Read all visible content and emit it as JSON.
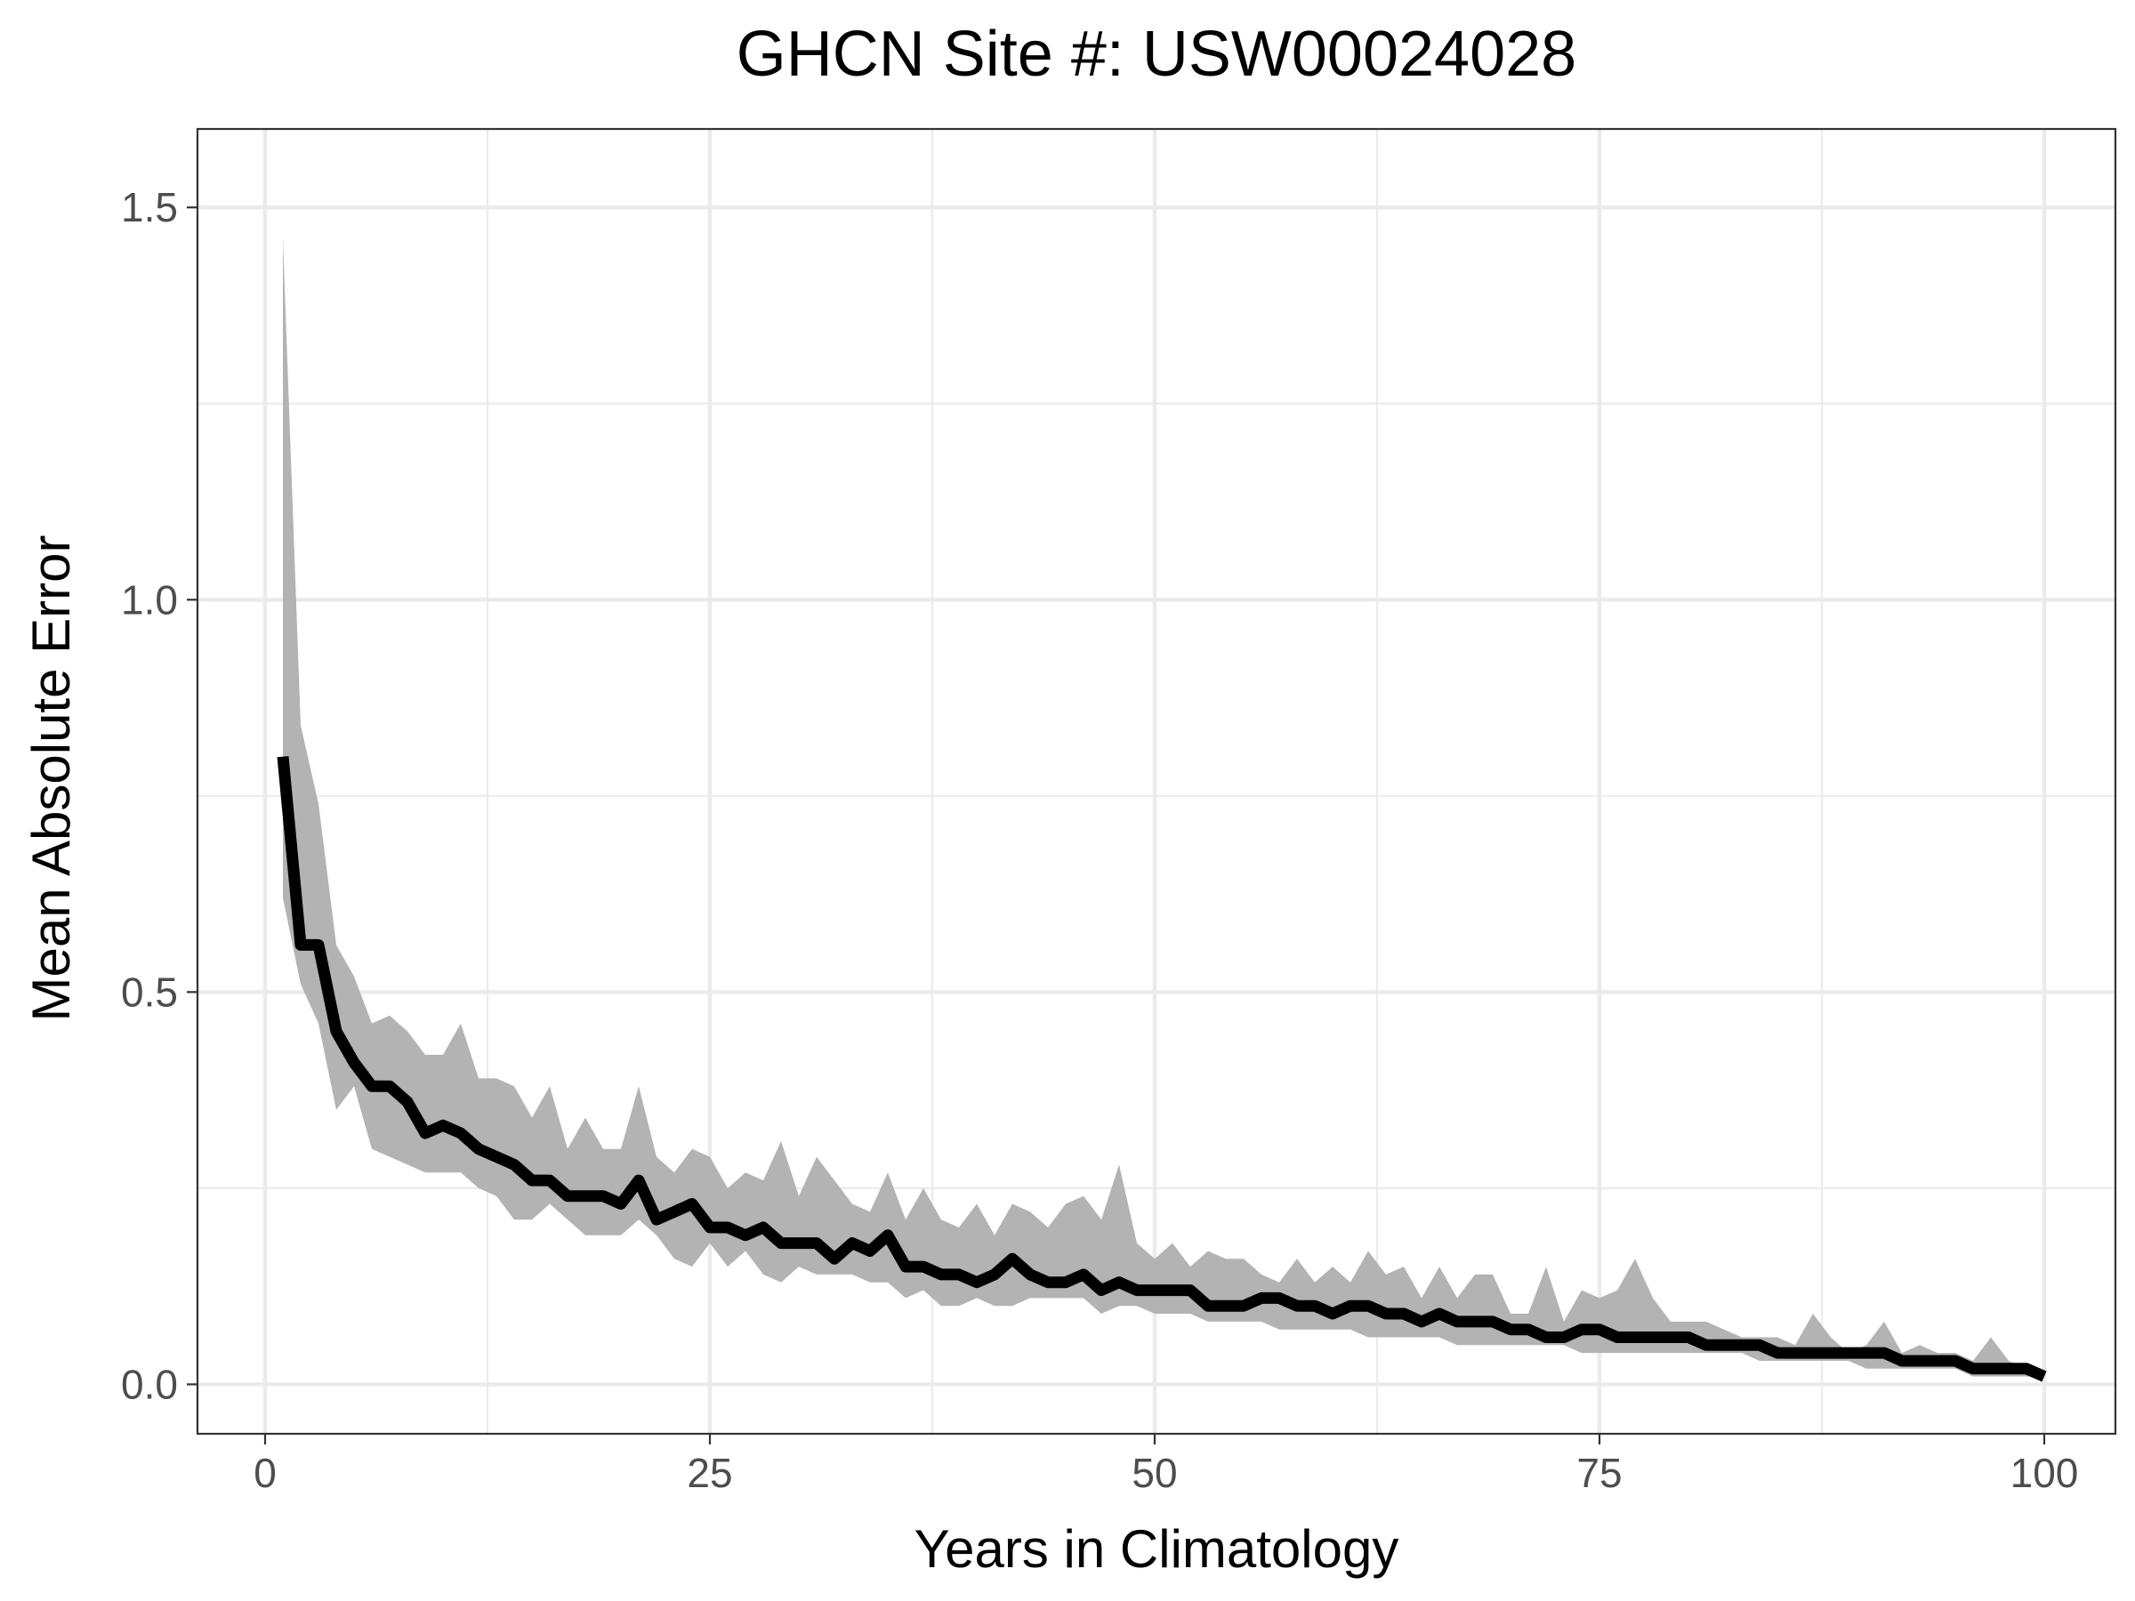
{
  "chart_data": {
    "type": "line",
    "title": "GHCN Site #: USW00024028",
    "xlabel": "Years in Climatology",
    "ylabel": "Mean Absolute Error",
    "xlim": [
      -3.8,
      104
    ],
    "ylim": [
      -0.063,
      1.6
    ],
    "x_ticks": [
      0,
      25,
      50,
      75,
      100
    ],
    "x_tick_labels": [
      "0",
      "25",
      "50",
      "75",
      "100"
    ],
    "y_ticks": [
      0.0,
      0.5,
      1.0,
      1.5
    ],
    "y_tick_labels": [
      "0.0",
      "0.5",
      "1.0",
      "1.5"
    ],
    "x_minor_ticks": [
      12.5,
      37.5,
      62.5,
      87.5
    ],
    "y_minor_ticks": [
      0.25,
      0.75,
      1.25
    ],
    "grid": true,
    "series": [
      {
        "kind": "ribbon",
        "color": "#b3b3b3",
        "x": [
          1,
          2,
          3,
          4,
          5,
          6,
          7,
          8,
          9,
          10,
          11,
          12,
          13,
          14,
          15,
          16,
          17,
          18,
          19,
          20,
          21,
          22,
          23,
          24,
          25,
          26,
          27,
          28,
          29,
          30,
          31,
          32,
          33,
          34,
          35,
          36,
          37,
          38,
          39,
          40,
          41,
          42,
          43,
          44,
          45,
          46,
          47,
          48,
          49,
          50,
          51,
          52,
          53,
          54,
          55,
          56,
          57,
          58,
          59,
          60,
          61,
          62,
          63,
          64,
          65,
          66,
          67,
          68,
          69,
          70,
          71,
          72,
          73,
          74,
          75,
          76,
          77,
          78,
          79,
          80,
          81,
          82,
          83,
          84,
          85,
          86,
          87,
          88,
          89,
          90,
          91,
          92,
          93,
          94,
          95,
          96,
          97,
          98,
          99,
          100
        ],
        "upper": [
          1.46,
          0.84,
          0.74,
          0.56,
          0.52,
          0.46,
          0.47,
          0.45,
          0.42,
          0.42,
          0.46,
          0.39,
          0.39,
          0.38,
          0.34,
          0.38,
          0.3,
          0.34,
          0.3,
          0.3,
          0.38,
          0.29,
          0.27,
          0.3,
          0.29,
          0.25,
          0.27,
          0.26,
          0.31,
          0.24,
          0.29,
          0.26,
          0.23,
          0.22,
          0.27,
          0.21,
          0.25,
          0.21,
          0.2,
          0.23,
          0.19,
          0.23,
          0.22,
          0.2,
          0.23,
          0.24,
          0.21,
          0.28,
          0.18,
          0.16,
          0.18,
          0.15,
          0.17,
          0.16,
          0.16,
          0.14,
          0.13,
          0.16,
          0.13,
          0.15,
          0.13,
          0.17,
          0.14,
          0.15,
          0.11,
          0.15,
          0.11,
          0.14,
          0.14,
          0.09,
          0.09,
          0.15,
          0.08,
          0.12,
          0.11,
          0.12,
          0.16,
          0.11,
          0.08,
          0.08,
          0.08,
          0.07,
          0.06,
          0.06,
          0.06,
          0.05,
          0.09,
          0.06,
          0.04,
          0.05,
          0.08,
          0.04,
          0.05,
          0.04,
          0.04,
          0.03,
          0.06,
          0.03,
          0.02,
          0.01
        ],
        "lower": [
          0.62,
          0.51,
          0.46,
          0.35,
          0.38,
          0.3,
          0.29,
          0.28,
          0.27,
          0.27,
          0.27,
          0.25,
          0.24,
          0.21,
          0.21,
          0.23,
          0.21,
          0.19,
          0.19,
          0.19,
          0.21,
          0.19,
          0.16,
          0.15,
          0.18,
          0.15,
          0.17,
          0.14,
          0.13,
          0.15,
          0.14,
          0.14,
          0.14,
          0.13,
          0.13,
          0.11,
          0.12,
          0.1,
          0.1,
          0.11,
          0.1,
          0.1,
          0.11,
          0.11,
          0.11,
          0.11,
          0.09,
          0.1,
          0.1,
          0.09,
          0.09,
          0.09,
          0.08,
          0.08,
          0.08,
          0.08,
          0.07,
          0.07,
          0.07,
          0.07,
          0.07,
          0.06,
          0.06,
          0.06,
          0.06,
          0.06,
          0.05,
          0.05,
          0.05,
          0.05,
          0.05,
          0.05,
          0.05,
          0.04,
          0.04,
          0.04,
          0.04,
          0.04,
          0.04,
          0.04,
          0.04,
          0.04,
          0.04,
          0.03,
          0.03,
          0.03,
          0.03,
          0.03,
          0.03,
          0.02,
          0.02,
          0.02,
          0.02,
          0.02,
          0.02,
          0.01,
          0.01,
          0.01,
          0.01,
          0.01
        ]
      },
      {
        "kind": "line",
        "color": "#000000",
        "x": [
          1,
          2,
          3,
          4,
          5,
          6,
          7,
          8,
          9,
          10,
          11,
          12,
          13,
          14,
          15,
          16,
          17,
          18,
          19,
          20,
          21,
          22,
          23,
          24,
          25,
          26,
          27,
          28,
          29,
          30,
          31,
          32,
          33,
          34,
          35,
          36,
          37,
          38,
          39,
          40,
          41,
          42,
          43,
          44,
          45,
          46,
          47,
          48,
          49,
          50,
          51,
          52,
          53,
          54,
          55,
          56,
          57,
          58,
          59,
          60,
          61,
          62,
          63,
          64,
          65,
          66,
          67,
          68,
          69,
          70,
          71,
          72,
          73,
          74,
          75,
          76,
          77,
          78,
          79,
          80,
          81,
          82,
          83,
          84,
          85,
          86,
          87,
          88,
          89,
          90,
          91,
          92,
          93,
          94,
          95,
          96,
          97,
          98,
          99,
          100
        ],
        "values": [
          0.8,
          0.56,
          0.56,
          0.45,
          0.41,
          0.38,
          0.38,
          0.36,
          0.32,
          0.33,
          0.32,
          0.3,
          0.29,
          0.28,
          0.26,
          0.26,
          0.24,
          0.24,
          0.24,
          0.23,
          0.26,
          0.21,
          0.22,
          0.23,
          0.2,
          0.2,
          0.19,
          0.2,
          0.18,
          0.18,
          0.18,
          0.16,
          0.18,
          0.17,
          0.19,
          0.15,
          0.15,
          0.14,
          0.14,
          0.13,
          0.14,
          0.16,
          0.14,
          0.13,
          0.13,
          0.14,
          0.12,
          0.13,
          0.12,
          0.12,
          0.12,
          0.12,
          0.1,
          0.1,
          0.1,
          0.11,
          0.11,
          0.1,
          0.1,
          0.09,
          0.1,
          0.1,
          0.09,
          0.09,
          0.08,
          0.09,
          0.08,
          0.08,
          0.08,
          0.07,
          0.07,
          0.06,
          0.06,
          0.07,
          0.07,
          0.06,
          0.06,
          0.06,
          0.06,
          0.06,
          0.05,
          0.05,
          0.05,
          0.05,
          0.04,
          0.04,
          0.04,
          0.04,
          0.04,
          0.04,
          0.04,
          0.03,
          0.03,
          0.03,
          0.03,
          0.02,
          0.02,
          0.02,
          0.02,
          0.01
        ]
      }
    ]
  }
}
